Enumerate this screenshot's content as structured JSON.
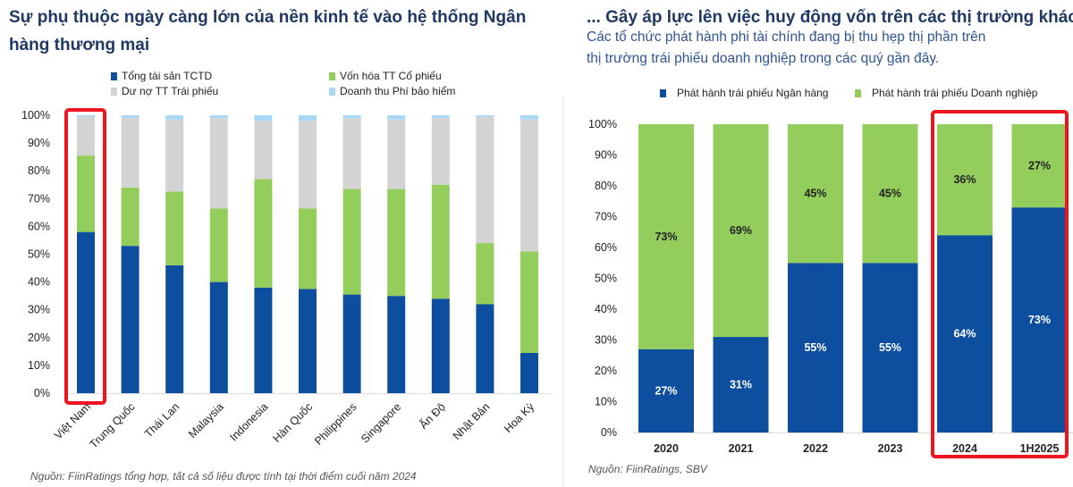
{
  "left": {
    "title": "Sự phụ thuộc ngày càng lớn của nền kinh tế vào hệ thống Ngân hàng thương mại",
    "source": "Nguồn: FiinRatings tổng hợp, tất cả số liệu được tính tại thời điểm cuối năm 2024",
    "highlight": "Việt Nam"
  },
  "right": {
    "title": "... Gây áp lực lên việc huy động vốn trên các thị trường khác",
    "subtitle_line1": "Các tổ chức phát hành phi tài chính đang bị thu hẹp thị phần trên",
    "subtitle_line2": "thị trường trái phiếu doanh nghiệp trong các quý gần đây.",
    "source": "Nguồn: FiinRatings, SBV",
    "highlight": [
      "2024",
      "1H2025"
    ]
  },
  "colors": {
    "blue": "#0d4f9e",
    "green": "#93cd5b",
    "gray": "#d3d3d3",
    "lightblue": "#a8d8f6",
    "highlight": "#f0141e"
  },
  "chart_data": [
    {
      "type": "bar",
      "stacked": true,
      "categories": [
        "Việt Nam",
        "Trung Quốc",
        "Thái Lan",
        "Malaysia",
        "Indonesia",
        "Hàn Quốc",
        "Philippines",
        "Singapore",
        "Ấn Độ",
        "Nhật Bản",
        "Hoa Kỳ"
      ],
      "series": [
        {
          "name": "Tổng tài sản TCTD",
          "color": "#0d4f9e",
          "values": [
            58,
            53,
            46,
            40,
            38,
            37.5,
            35.5,
            35,
            34,
            32,
            14.5
          ]
        },
        {
          "name": "Vốn hóa TT Cổ phiếu",
          "color": "#93cd5b",
          "values": [
            27.5,
            21,
            26.5,
            26.5,
            39,
            29,
            38,
            38.5,
            41,
            22,
            36.5
          ]
        },
        {
          "name": "Dư nợ TT Trái phiếu",
          "color": "#d3d3d3",
          "values": [
            14,
            25,
            26,
            32.5,
            21,
            31.5,
            25.5,
            25,
            24,
            45.5,
            47.5
          ]
        },
        {
          "name": "Doanh thu Phí bảo hiểm",
          "color": "#a8d8f6",
          "values": [
            0.5,
            1,
            1.5,
            1,
            2,
            2,
            1,
            1.5,
            1,
            0.5,
            1.5
          ]
        }
      ],
      "yticks": [
        "0%",
        "10%",
        "20%",
        "30%",
        "40%",
        "50%",
        "60%",
        "70%",
        "80%",
        "90%",
        "100%"
      ],
      "ylim": [
        0,
        100
      ],
      "legend": "top"
    },
    {
      "type": "bar",
      "stacked": true,
      "categories": [
        "2020",
        "2021",
        "2022",
        "2023",
        "2024",
        "1H2025"
      ],
      "series": [
        {
          "name": "Phát hành trái phiếu Ngân hàng",
          "color": "#0d4f9e",
          "values": [
            27,
            31,
            55,
            55,
            64,
            73
          ],
          "labels": [
            "27%",
            "31%",
            "55%",
            "55%",
            "64%",
            "73%"
          ]
        },
        {
          "name": "Phát hành trái phiếu Doanh nghiệp",
          "color": "#93cd5b",
          "values": [
            73,
            69,
            45,
            45,
            36,
            27
          ],
          "labels": [
            "73%",
            "69%",
            "45%",
            "45%",
            "36%",
            "27%"
          ]
        }
      ],
      "yticks": [
        "0%",
        "10%",
        "20%",
        "30%",
        "40%",
        "50%",
        "60%",
        "70%",
        "80%",
        "90%",
        "100%"
      ],
      "ylim": [
        0,
        100
      ],
      "legend": "top"
    }
  ]
}
